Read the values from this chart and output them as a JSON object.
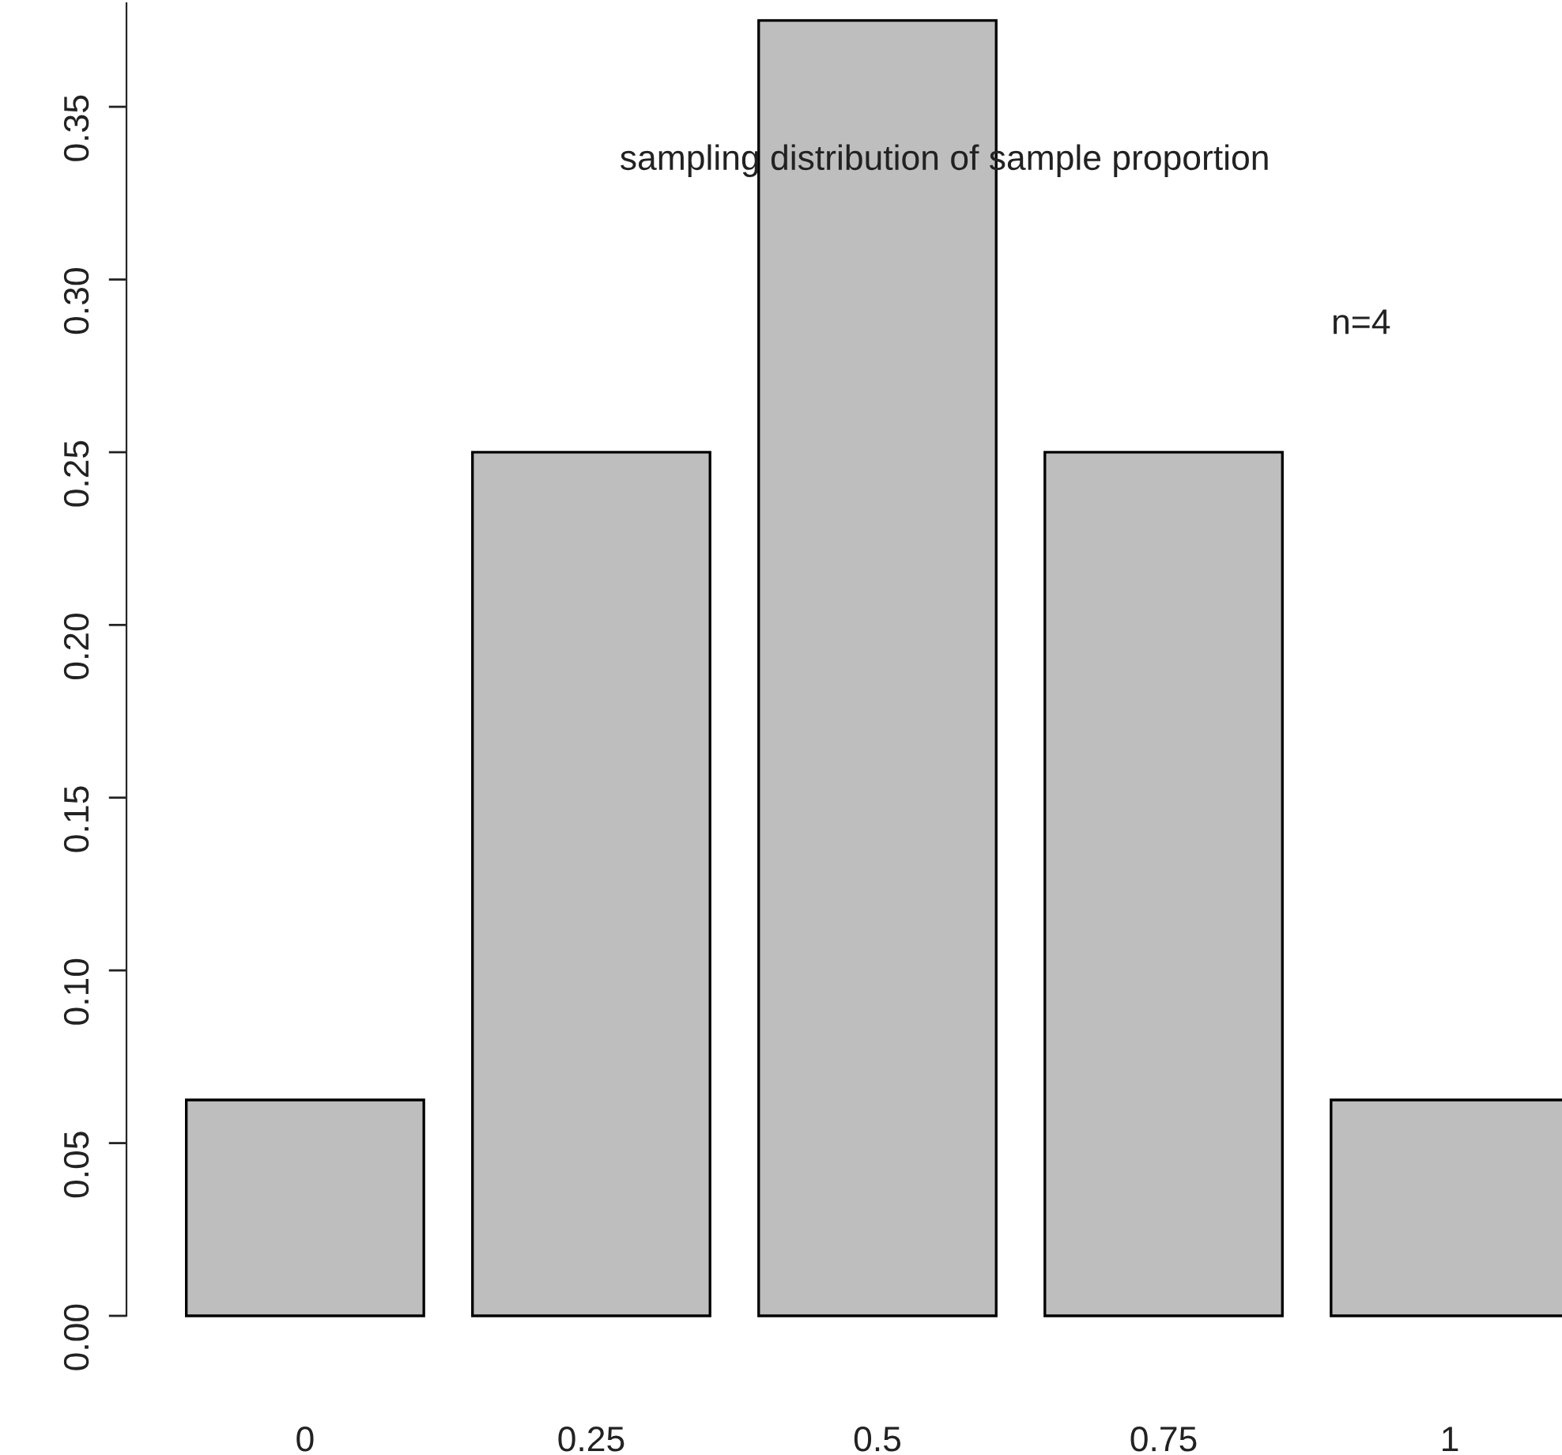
{
  "chart_data": {
    "type": "bar",
    "categories": [
      "0",
      "0.25",
      "0.5",
      "0.75",
      "1"
    ],
    "values": [
      0.0625,
      0.25,
      0.375,
      0.25,
      0.0625
    ],
    "color": "#bebebe",
    "ylim": [
      0,
      0.38
    ],
    "yticks": [
      {
        "value": 0,
        "label": "0.00"
      },
      {
        "value": 0.05,
        "label": "0.05"
      },
      {
        "value": 0.1,
        "label": "0.10"
      },
      {
        "value": 0.15,
        "label": "0.15"
      },
      {
        "value": 0.2,
        "label": "0.20"
      },
      {
        "value": 0.25,
        "label": "0.25"
      },
      {
        "value": 0.3,
        "label": "0.30"
      },
      {
        "value": 0.35,
        "label": "0.35"
      }
    ],
    "annotations": [
      "sampling distribution of sample proportion",
      "n=4"
    ],
    "grid": false,
    "legend": false
  }
}
